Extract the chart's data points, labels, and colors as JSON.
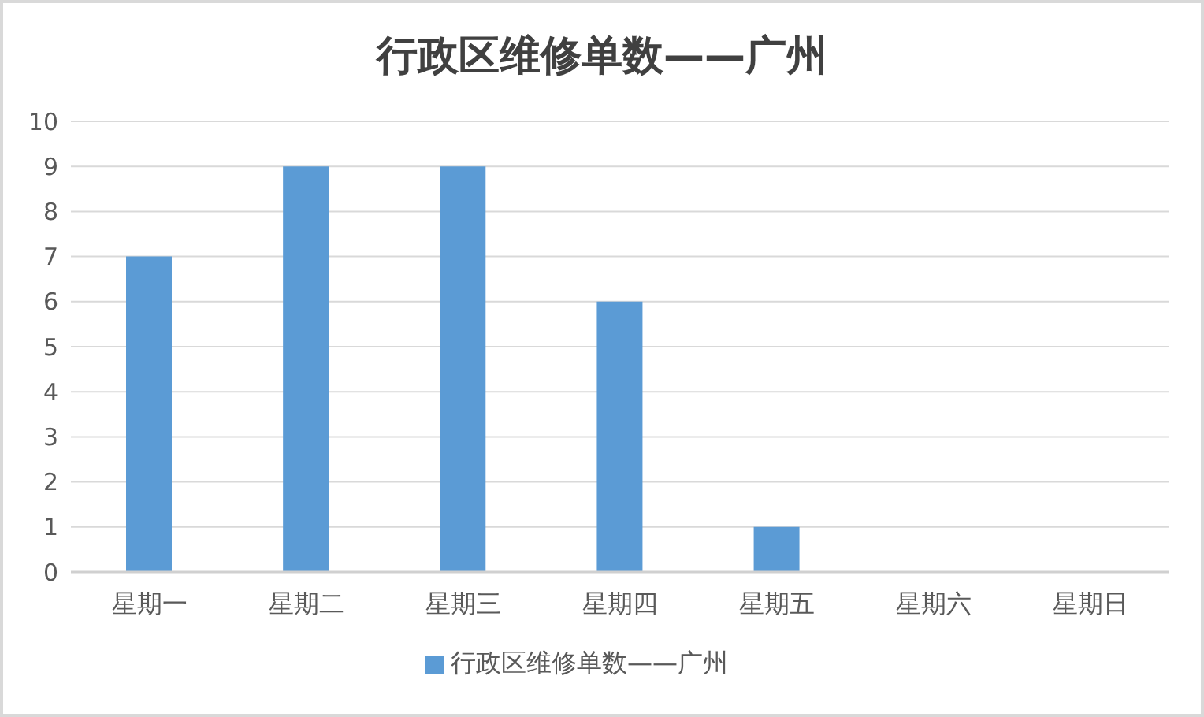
{
  "chart_data": {
    "type": "bar",
    "title": "行政区维修单数——广州",
    "categories": [
      "星期一",
      "星期二",
      "星期三",
      "星期四",
      "星期五",
      "星期六",
      "星期日"
    ],
    "series": [
      {
        "name": "行政区维修单数——广州",
        "color": "#5b9bd5",
        "values": [
          7,
          9,
          9,
          6,
          1,
          0,
          0
        ]
      }
    ],
    "ylim": [
      0,
      10
    ],
    "yticks": [
      0,
      1,
      2,
      3,
      4,
      5,
      6,
      7,
      8,
      9,
      10
    ],
    "grid": "y",
    "legend": "bottom"
  }
}
